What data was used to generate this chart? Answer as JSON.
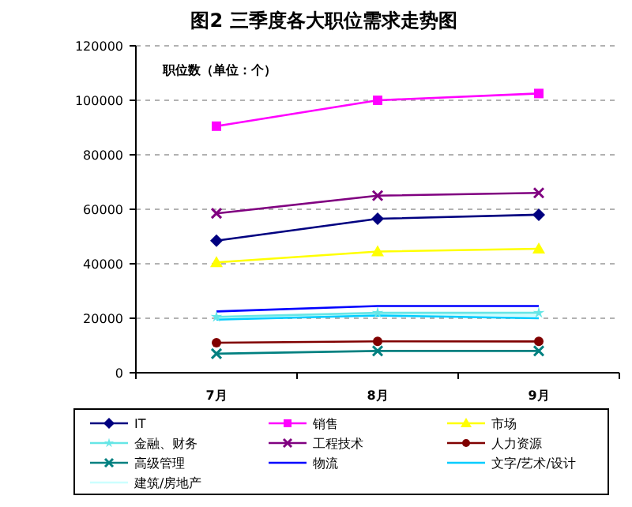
{
  "chart_data": {
    "type": "line",
    "title": "图2 三季度各大职位需求走势图",
    "ylabel": "职位数（单位：个）",
    "categories": [
      "7月",
      "8月",
      "9月"
    ],
    "ylim": [
      0,
      120000
    ],
    "yticks": [
      0,
      20000,
      40000,
      60000,
      80000,
      100000,
      120000
    ],
    "grid": "y",
    "legend": "bottom",
    "line_style": "solid",
    "series": [
      {
        "name": "IT",
        "color": "#000080",
        "marker": "diamond",
        "values": [
          48500,
          56500,
          58000
        ]
      },
      {
        "name": "销售",
        "color": "#ff00ff",
        "marker": "square",
        "values": [
          90500,
          100000,
          102500
        ]
      },
      {
        "name": "市场",
        "color": "#ffff00",
        "marker": "triangle",
        "values": [
          40500,
          44500,
          45500
        ]
      },
      {
        "name": "金融、财务",
        "color": "#66e6e6",
        "marker": "star",
        "values": [
          20500,
          22000,
          22000
        ]
      },
      {
        "name": "工程技术",
        "color": "#800080",
        "marker": "cross",
        "values": [
          58500,
          65000,
          66000
        ]
      },
      {
        "name": "人力资源",
        "color": "#800000",
        "marker": "circle",
        "values": [
          11000,
          11500,
          11500
        ]
      },
      {
        "name": "高级管理",
        "color": "#008080",
        "marker": "cross",
        "values": [
          7000,
          8000,
          8000
        ]
      },
      {
        "name": "物流",
        "color": "#0000ff",
        "marker": "none",
        "values": [
          22500,
          24500,
          24500
        ]
      },
      {
        "name": "文字/艺术/设计",
        "color": "#00ccff",
        "marker": "none",
        "values": [
          19500,
          21000,
          20000
        ]
      },
      {
        "name": "建筑/房地产",
        "color": "#ccffff",
        "marker": "none",
        "values": [
          20000,
          21500,
          21000
        ]
      }
    ]
  }
}
